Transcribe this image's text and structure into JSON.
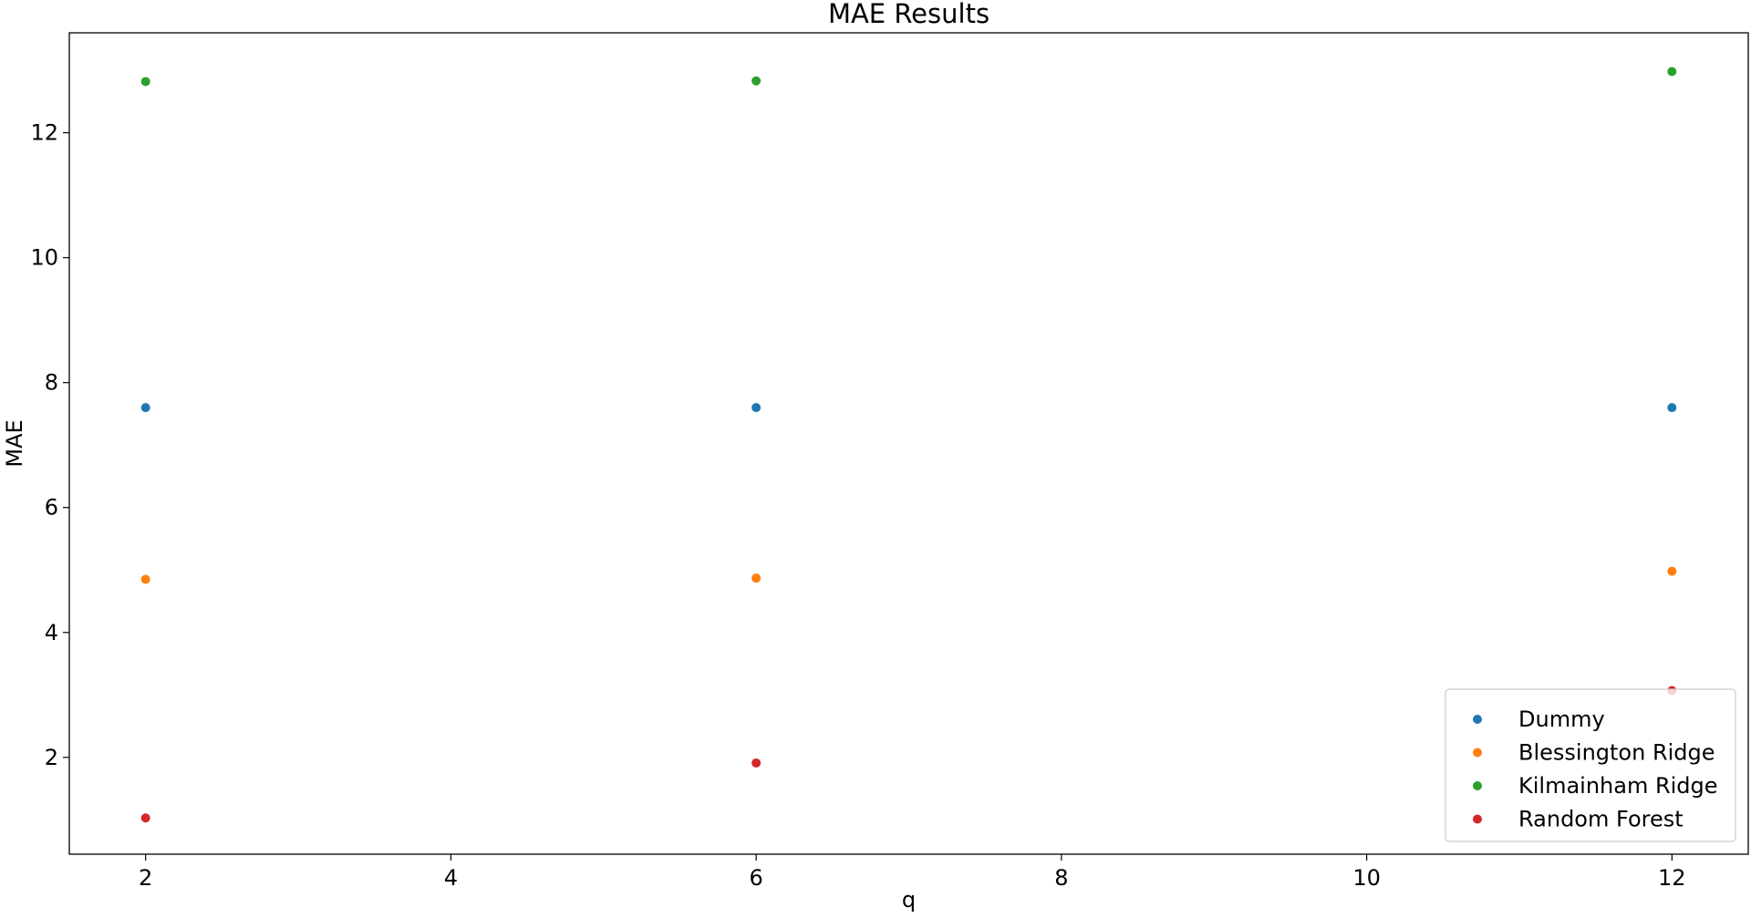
{
  "chart_data": {
    "type": "scatter",
    "title": "MAE Results",
    "xlabel": "q",
    "ylabel": "MAE",
    "xlim": [
      1.5,
      12.5
    ],
    "ylim": [
      0.45,
      13.6
    ],
    "xticks": [
      2,
      4,
      6,
      8,
      10,
      12
    ],
    "yticks": [
      2,
      4,
      6,
      8,
      10,
      12
    ],
    "grid": false,
    "legend_position": "bottom-right",
    "series": [
      {
        "name": "Dummy",
        "color": "#1f77b4",
        "x": [
          2,
          6,
          12
        ],
        "y": [
          7.6,
          7.6,
          7.6
        ]
      },
      {
        "name": "Blessington Ridge",
        "color": "#ff7f0e",
        "x": [
          2,
          6,
          12
        ],
        "y": [
          4.85,
          4.87,
          4.98
        ]
      },
      {
        "name": "Kilmainham Ridge",
        "color": "#2ca02c",
        "x": [
          2,
          6,
          12
        ],
        "y": [
          12.82,
          12.83,
          12.98
        ]
      },
      {
        "name": "Random Forest",
        "color": "#d62728",
        "x": [
          2,
          6,
          12
        ],
        "y": [
          1.03,
          1.91,
          3.07
        ]
      }
    ]
  }
}
